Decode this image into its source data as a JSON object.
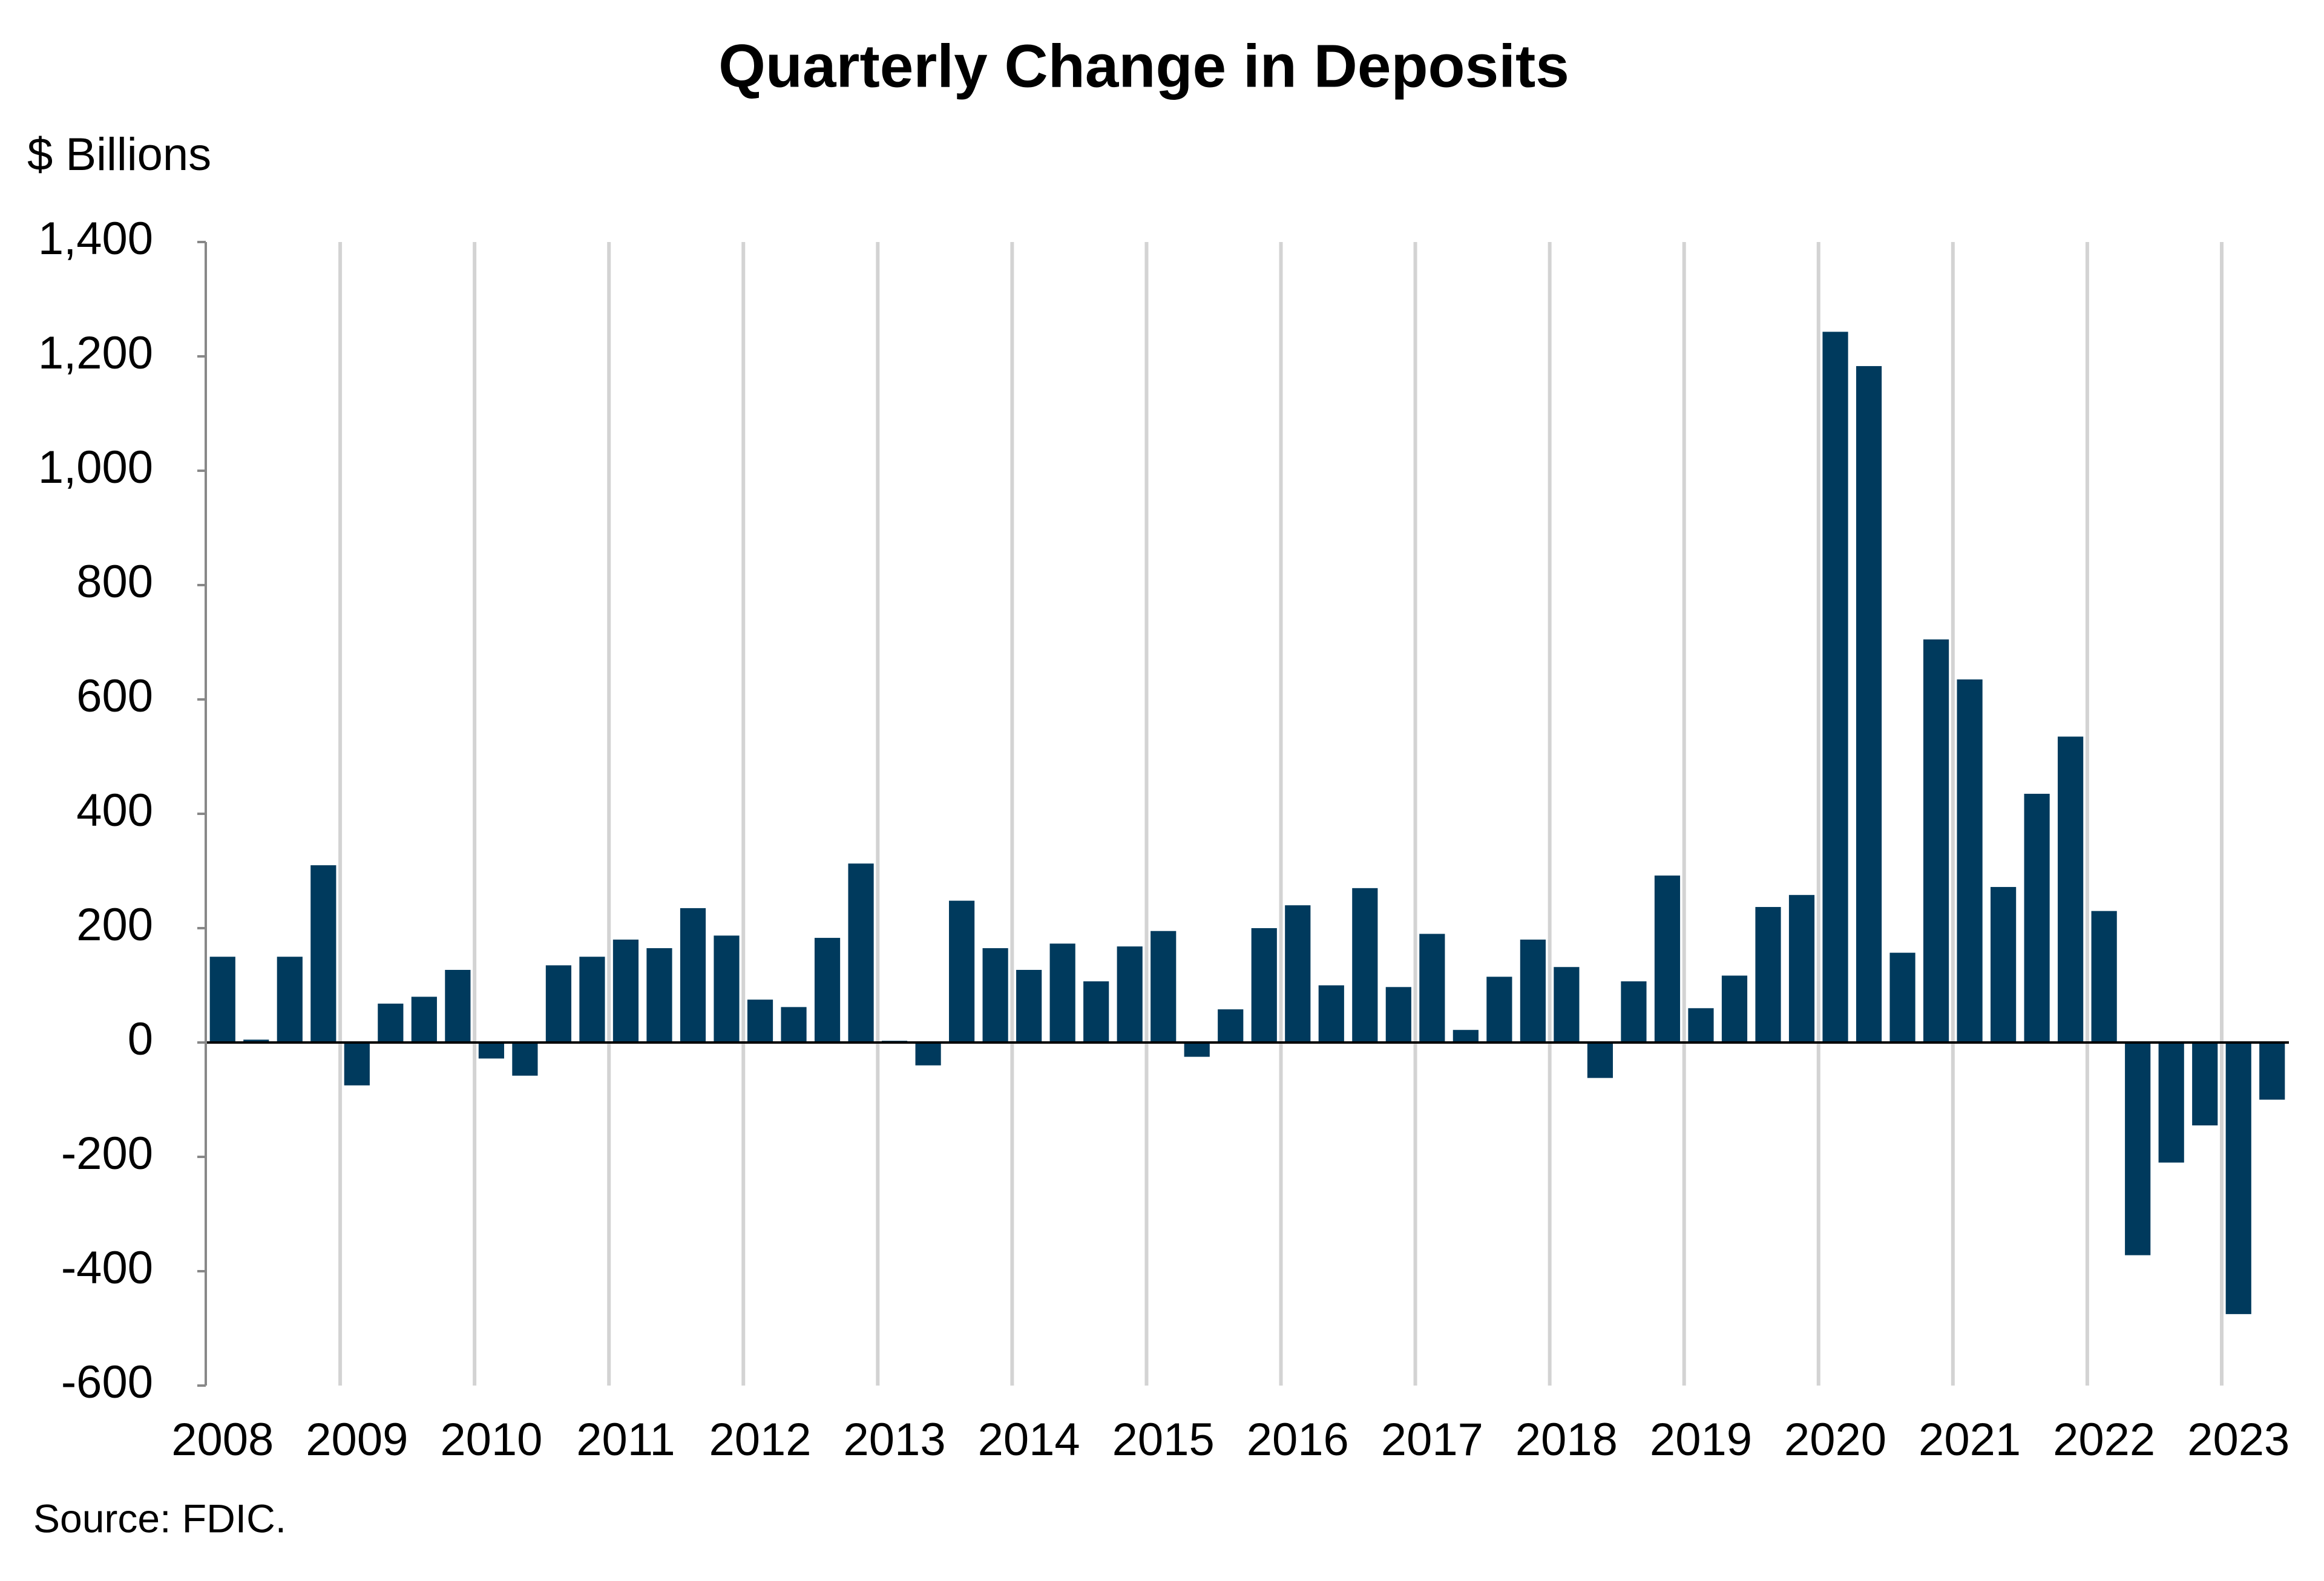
{
  "chart_data": {
    "type": "bar",
    "title": "Quarterly Change in Deposits",
    "y_label": "$ Billions",
    "source": "Source: FDIC.",
    "categories": [
      "2008",
      null,
      null,
      null,
      "2009",
      null,
      null,
      null,
      "2010",
      null,
      null,
      null,
      "2011",
      null,
      null,
      null,
      "2012",
      null,
      null,
      null,
      "2013",
      null,
      null,
      null,
      "2014",
      null,
      null,
      null,
      "2015",
      null,
      null,
      null,
      "2016",
      null,
      null,
      null,
      "2017",
      null,
      null,
      null,
      "2018",
      null,
      null,
      null,
      "2019",
      null,
      null,
      null,
      "2020",
      null,
      null,
      null,
      "2021",
      null,
      null,
      null,
      "2022",
      null,
      null,
      null,
      "2023",
      null
    ],
    "values": [
      150,
      5,
      150,
      310,
      -75,
      68,
      80,
      127,
      -28,
      -58,
      135,
      150,
      180,
      165,
      235,
      187,
      75,
      62,
      183,
      313,
      3,
      -40,
      248,
      165,
      127,
      173,
      107,
      168,
      195,
      -25,
      58,
      200,
      240,
      100,
      270,
      97,
      190,
      22,
      115,
      180,
      132,
      -62,
      107,
      292,
      60,
      117,
      237,
      258,
      1243,
      1183,
      157,
      705,
      635,
      272,
      435,
      535,
      230,
      -372,
      -210,
      -145,
      -475,
      -100
    ],
    "color": "#003a5d",
    "ylim": [
      -600,
      1400
    ],
    "yticks": [
      -600,
      -400,
      -200,
      0,
      200,
      400,
      600,
      800,
      {
        "value": 1000,
        "label": "1,000"
      },
      {
        "value": 1200,
        "label": "1,200"
      },
      {
        "value": 1400,
        "label": "1,400"
      }
    ],
    "grid": true
  }
}
